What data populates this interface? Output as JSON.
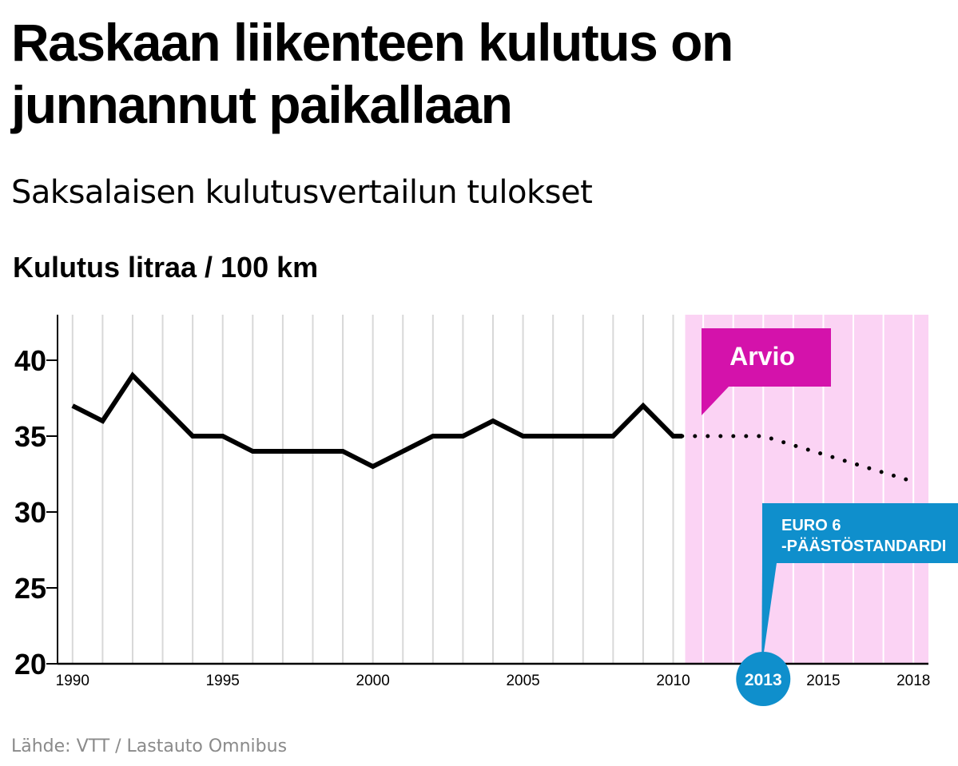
{
  "title": "Raskaan liikenteen kulutus on junnannut paikallaan",
  "subtitle": "Saksalaisen kulutusvertailun tulokset",
  "unit_label": "Kulutus litraa / 100 km",
  "source": "Lähde: VTT / Lastauto Omnibus",
  "colors": {
    "line": "#000000",
    "forecast_band": "#fbd3f4",
    "forecast_label_bg": "#d412ab",
    "euro_label_bg": "#0f8fcc",
    "grid": "#d8d8d8"
  },
  "chart_data": {
    "type": "line",
    "ylim": [
      20,
      43
    ],
    "y_ticks": [
      "20",
      "25",
      "30",
      "35",
      "40"
    ],
    "xlim": [
      1989.5,
      2018.5
    ],
    "x_tick_labels": [
      "1990",
      "1995",
      "2000",
      "2005",
      "2010",
      "2015",
      "2018"
    ],
    "grid": "vertical",
    "series": [
      {
        "style": "solid",
        "x": [
          1990,
          1991,
          1992,
          1993,
          1994,
          1995,
          1996,
          1997,
          1998,
          1999,
          2000,
          2001,
          2002,
          2003,
          2004,
          2005,
          2006,
          2007,
          2008,
          2009,
          2010,
          2010.3
        ],
        "y": [
          37,
          36,
          39,
          37,
          35,
          35,
          34,
          34,
          34,
          34,
          33,
          34,
          35,
          35,
          36,
          35,
          35,
          35,
          35,
          37,
          35,
          35
        ]
      },
      {
        "style": "dotted",
        "x": [
          2010.3,
          2011,
          2012,
          2013,
          2014,
          2015,
          2016,
          2017,
          2018
        ],
        "y": [
          35,
          35,
          35,
          35,
          34.4,
          33.8,
          33.2,
          32.6,
          32
        ]
      }
    ],
    "annotations": {
      "forecast": {
        "label": "Arvio",
        "from": 2010.4,
        "to": 2018.5
      },
      "euro": {
        "label_line1": "EURO 6",
        "label_line2": "-PÄÄSTÖSTANDARDI",
        "year": "2013"
      }
    }
  }
}
